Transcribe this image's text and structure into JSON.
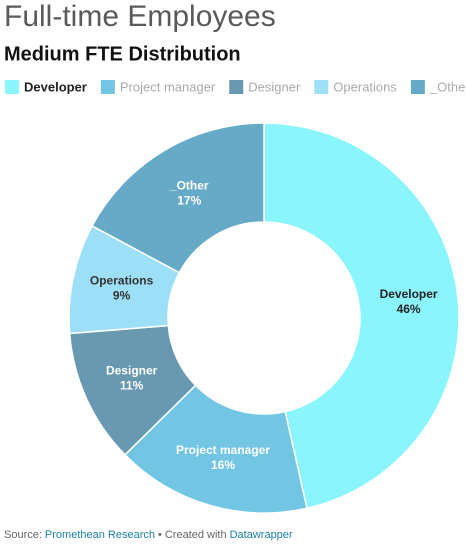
{
  "chart_data": {
    "type": "donut",
    "title": "Full-time Employees",
    "subtitle": "Medium FTE Distribution",
    "categories": [
      "Developer",
      "Project manager",
      "Designer",
      "Operations",
      "_Other"
    ],
    "values": [
      46,
      16,
      11,
      9,
      17
    ],
    "value_labels": [
      "46%",
      "16%",
      "11%",
      "9%",
      "17%"
    ],
    "colors": [
      "#8af5fd",
      "#72c6e3",
      "#6899b0",
      "#9ddff7",
      "#67aac8"
    ],
    "label_colors": [
      "#222222",
      "#ffffff",
      "#ffffff",
      "#333333",
      "#ffffff"
    ],
    "legend_highlight": [
      true,
      false,
      false,
      false,
      false
    ],
    "legend_position": "top",
    "source_label": "Source:",
    "source": "Promethean Research",
    "separator": "•",
    "credit_label": "Created with",
    "credit": "Datawrapper"
  }
}
